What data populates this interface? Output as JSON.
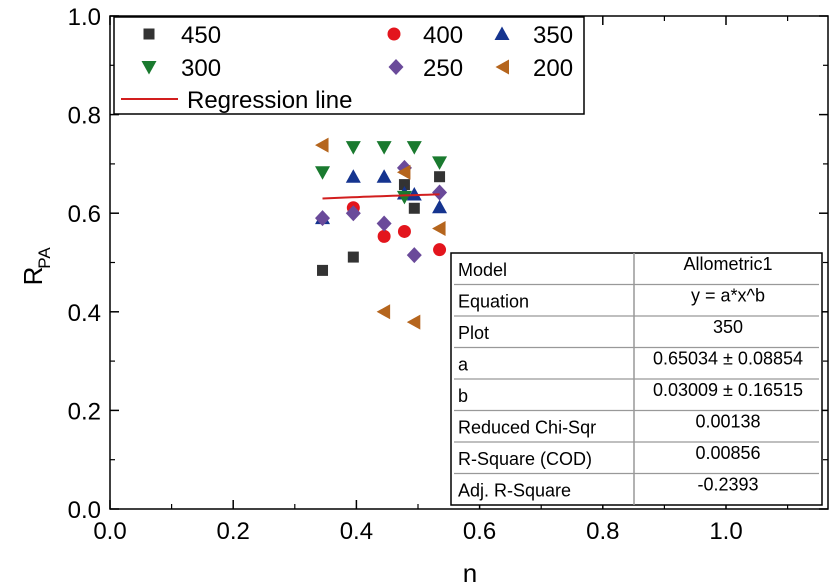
{
  "chart_data": {
    "type": "scatter",
    "xlabel": "n",
    "ylabel_main": "R",
    "ylabel_sub": "PA",
    "xlim": [
      0.0,
      1.18
    ],
    "ylim": [
      0.0,
      1.0
    ],
    "xticks": [
      {
        "value": 0.0,
        "label": "0.0"
      },
      {
        "value": 0.2,
        "label": "0.2"
      },
      {
        "value": 0.4,
        "label": "0.4"
      },
      {
        "value": 0.6,
        "label": "0.6"
      },
      {
        "value": 0.8,
        "label": "0.8"
      },
      {
        "value": 1.0,
        "label": "1.0"
      }
    ],
    "yticks": [
      {
        "value": 0.0,
        "label": "0.0"
      },
      {
        "value": 0.2,
        "label": "0.2"
      },
      {
        "value": 0.4,
        "label": "0.4"
      },
      {
        "value": 0.6,
        "label": "0.6"
      },
      {
        "value": 0.8,
        "label": "0.8"
      },
      {
        "value": 1.0,
        "label": "1.0"
      }
    ],
    "legend_position": "top-left",
    "series": [
      {
        "name": "450",
        "marker": "square",
        "color": "#333333",
        "points": [
          [
            0.345,
            0.484
          ],
          [
            0.395,
            0.511
          ],
          [
            0.478,
            0.658
          ],
          [
            0.494,
            0.61
          ],
          [
            0.535,
            0.674
          ]
        ]
      },
      {
        "name": "400",
        "marker": "circle",
        "color": "#e3151d",
        "points": [
          [
            0.395,
            0.611
          ],
          [
            0.445,
            0.553
          ],
          [
            0.478,
            0.563
          ],
          [
            0.535,
            0.526
          ]
        ]
      },
      {
        "name": "350",
        "marker": "triangle-up",
        "color": "#15348f",
        "points": [
          [
            0.345,
            0.59
          ],
          [
            0.395,
            0.674
          ],
          [
            0.445,
            0.674
          ],
          [
            0.478,
            0.64
          ],
          [
            0.494,
            0.638
          ],
          [
            0.535,
            0.612
          ]
        ]
      },
      {
        "name": "300",
        "marker": "triangle-down",
        "color": "#1a7a2f",
        "points": [
          [
            0.345,
            0.683
          ],
          [
            0.395,
            0.734
          ],
          [
            0.445,
            0.734
          ],
          [
            0.494,
            0.734
          ],
          [
            0.535,
            0.703
          ],
          [
            0.478,
            0.633
          ]
        ]
      },
      {
        "name": "250",
        "marker": "diamond",
        "color": "#6a4a9a",
        "points": [
          [
            0.345,
            0.59
          ],
          [
            0.395,
            0.6
          ],
          [
            0.445,
            0.579
          ],
          [
            0.478,
            0.692
          ],
          [
            0.494,
            0.515
          ],
          [
            0.535,
            0.642
          ]
        ]
      },
      {
        "name": "200",
        "marker": "triangle-left",
        "color": "#b5651d",
        "points": [
          [
            0.345,
            0.738
          ],
          [
            0.445,
            0.4
          ],
          [
            0.494,
            0.379
          ],
          [
            0.478,
            0.683
          ],
          [
            0.535,
            0.569
          ]
        ]
      }
    ],
    "regression": {
      "name": "Regression line",
      "color": "#d21e1e",
      "a": 0.65034,
      "b": 0.03009,
      "x_range": [
        0.345,
        0.535
      ]
    }
  },
  "fit_table": {
    "rows": [
      {
        "label": "Model",
        "value": "Allometric1"
      },
      {
        "label": "Equation",
        "value": "y = a*x^b"
      },
      {
        "label": "Plot",
        "value": "350"
      },
      {
        "label": "a",
        "value": "0.65034 ± 0.08854"
      },
      {
        "label": "b",
        "value": "0.03009 ± 0.16515"
      },
      {
        "label": "Reduced Chi-Sqr",
        "value": "0.00138"
      },
      {
        "label": "R-Square (COD)",
        "value": "0.00856"
      },
      {
        "label": "Adj. R-Square",
        "value": "-0.2393"
      }
    ]
  }
}
